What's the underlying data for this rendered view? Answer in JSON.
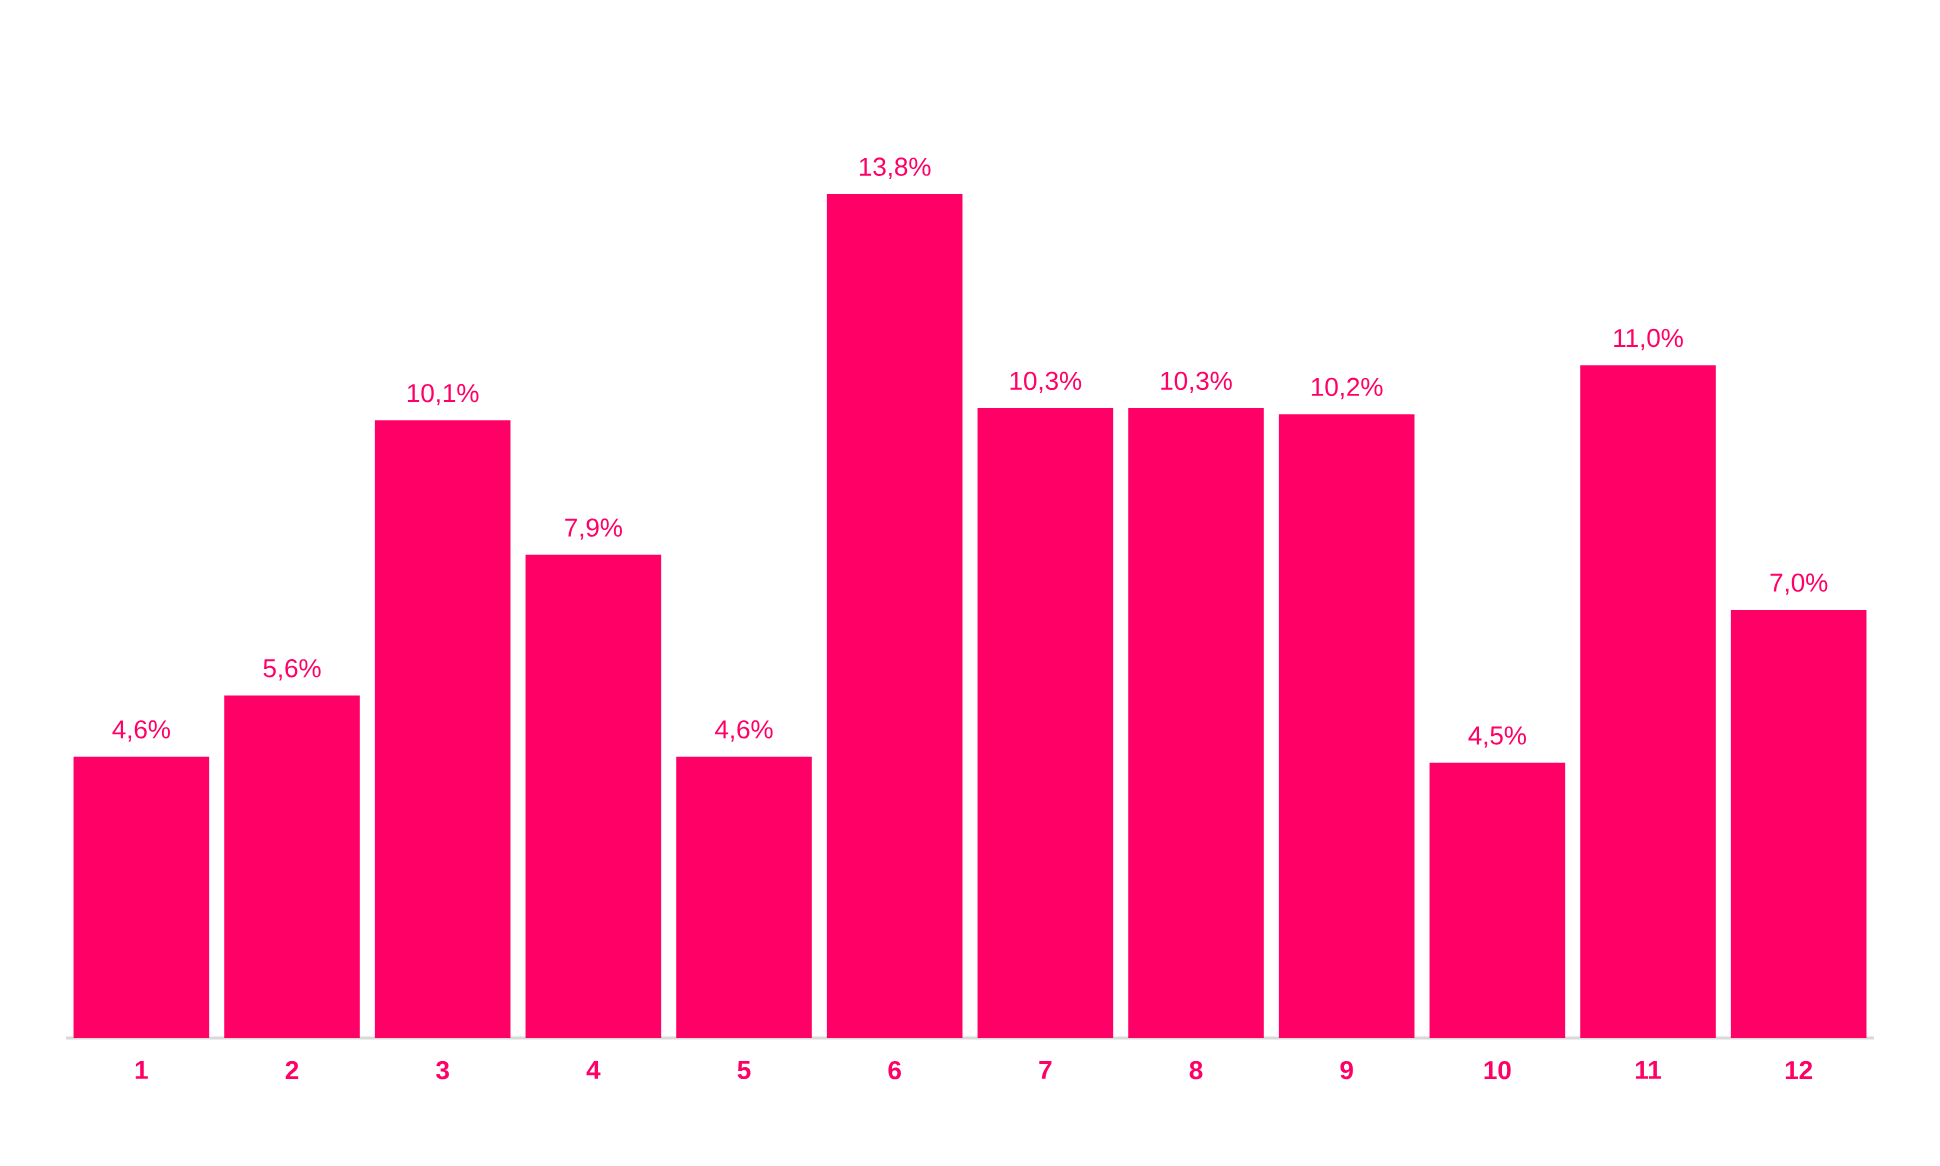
{
  "chart_data": {
    "type": "bar",
    "categories": [
      "1",
      "2",
      "3",
      "4",
      "5",
      "6",
      "7",
      "8",
      "9",
      "10",
      "11",
      "12"
    ],
    "values": [
      4.6,
      5.6,
      10.1,
      7.9,
      4.6,
      13.8,
      10.3,
      10.3,
      10.2,
      4.5,
      11.0,
      7.0
    ],
    "value_labels": [
      "4,6%",
      "5,6%",
      "10,1%",
      "7,9%",
      "4,6%",
      "13,8%",
      "10,3%",
      "10,3%",
      "10,2%",
      "4,5%",
      "11,0%",
      "7,0%"
    ],
    "color": "#ff0066"
  }
}
